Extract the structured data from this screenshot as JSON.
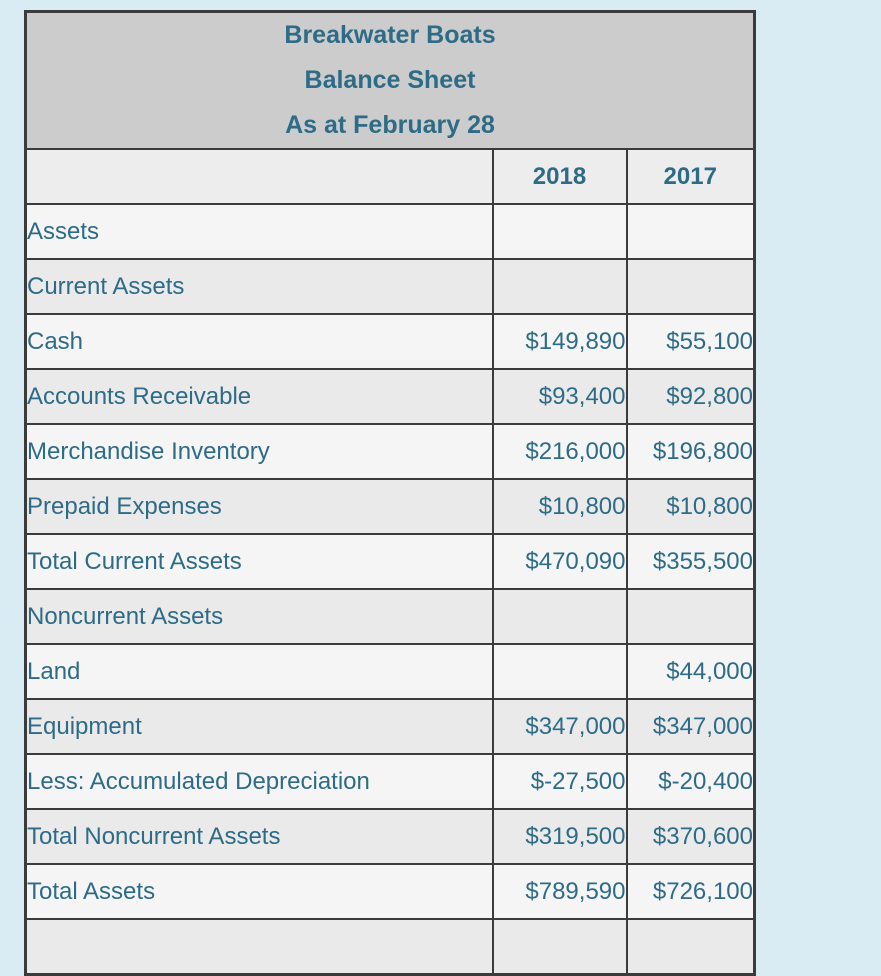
{
  "colors": {
    "page_background": "#d9ecf4",
    "title_background": "#cccccc",
    "year_row_background": "#ededed",
    "stripe_light": "#f5f5f5",
    "stripe_dark": "#eaeaea",
    "border": "#3b3b3b",
    "text": "#2d6b87"
  },
  "table": {
    "title_lines": [
      "Breakwater Boats",
      "Balance Sheet",
      "As at February 28"
    ],
    "columns": {
      "label": "",
      "y2018": "2018",
      "y2017": "2017"
    },
    "rows": [
      {
        "label": "Assets",
        "v2018": "",
        "v2017": ""
      },
      {
        "label": "Current Assets",
        "v2018": "",
        "v2017": ""
      },
      {
        "label": "Cash",
        "v2018": "$149,890",
        "v2017": "$55,100"
      },
      {
        "label": "Accounts Receivable",
        "v2018": "$93,400",
        "v2017": "$92,800"
      },
      {
        "label": "Merchandise Inventory",
        "v2018": "$216,000",
        "v2017": "$196,800"
      },
      {
        "label": "Prepaid Expenses",
        "v2018": "$10,800",
        "v2017": "$10,800"
      },
      {
        "label": "Total Current Assets",
        "v2018": "$470,090",
        "v2017": "$355,500"
      },
      {
        "label": "Noncurrent Assets",
        "v2018": "",
        "v2017": ""
      },
      {
        "label": "Land",
        "v2018": "",
        "v2017": "$44,000"
      },
      {
        "label": "Equipment",
        "v2018": "$347,000",
        "v2017": "$347,000"
      },
      {
        "label": "Less: Accumulated Depreciation",
        "v2018": "$-27,500",
        "v2017": "$-20,400"
      },
      {
        "label": "Total Noncurrent Assets",
        "v2018": "$319,500",
        "v2017": "$370,600"
      },
      {
        "label": "Total Assets",
        "v2018": "$789,590",
        "v2017": "$726,100"
      },
      {
        "label": "",
        "v2018": "",
        "v2017": ""
      }
    ]
  }
}
